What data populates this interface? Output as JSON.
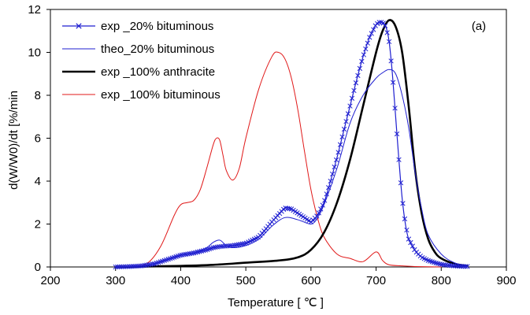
{
  "chart_data": {
    "type": "line",
    "annotation": "(a)",
    "xlabel": "Temperature [ ℃ ]",
    "ylabel": "d(W/W0)/dt [%/min",
    "xlim": [
      200,
      900
    ],
    "ylim": [
      0,
      12
    ],
    "x_ticks": [
      "200",
      "300",
      "400",
      "500",
      "600",
      "700",
      "800",
      "900"
    ],
    "y_ticks": [
      "0",
      "2",
      "4",
      "6",
      "8",
      "10",
      "12"
    ],
    "grid": false,
    "legend_position": "top-left",
    "series": [
      {
        "name": "exp _20% bituminous",
        "color": "#1f1fd0",
        "style": "line-with-x-markers",
        "x": [
          300,
          320,
          340,
          360,
          380,
          400,
          420,
          440,
          450,
          460,
          480,
          500,
          520,
          540,
          560,
          570,
          580,
          590,
          600,
          610,
          620,
          630,
          640,
          650,
          660,
          670,
          680,
          690,
          700,
          705,
          710,
          715,
          720,
          725,
          730,
          735,
          740,
          745,
          750,
          760,
          770,
          780,
          790,
          800,
          810,
          820,
          830,
          840
        ],
        "y": [
          0.0,
          0.02,
          0.05,
          0.15,
          0.35,
          0.55,
          0.65,
          0.8,
          0.9,
          0.95,
          1.0,
          1.1,
          1.4,
          2.1,
          2.75,
          2.7,
          2.5,
          2.3,
          2.1,
          2.4,
          3.0,
          4.0,
          5.1,
          6.3,
          7.5,
          8.7,
          9.8,
          10.7,
          11.3,
          11.4,
          11.4,
          11.2,
          10.5,
          9.0,
          7.0,
          5.0,
          3.2,
          2.0,
          1.3,
          0.75,
          0.45,
          0.3,
          0.2,
          0.12,
          0.08,
          0.05,
          0.03,
          0.02
        ]
      },
      {
        "name": "theo_20% bituminous",
        "color": "#1f1fd0",
        "style": "thin-line",
        "x": [
          300,
          340,
          360,
          380,
          400,
          420,
          440,
          450,
          460,
          470,
          480,
          500,
          520,
          540,
          560,
          580,
          600,
          610,
          620,
          640,
          660,
          680,
          700,
          710,
          720,
          730,
          740,
          750,
          760,
          770,
          780,
          800,
          820,
          840
        ],
        "y": [
          0.0,
          0.05,
          0.15,
          0.35,
          0.55,
          0.65,
          0.9,
          1.15,
          1.25,
          1.0,
          0.9,
          1.0,
          1.3,
          1.9,
          2.3,
          2.2,
          2.0,
          2.3,
          2.9,
          4.6,
          6.7,
          8.0,
          8.8,
          9.05,
          9.2,
          9.0,
          8.0,
          6.5,
          4.4,
          2.7,
          1.5,
          0.6,
          0.2,
          0.05
        ]
      },
      {
        "name": "exp _100% anthracite",
        "color": "#000000",
        "style": "thick-line",
        "x": [
          300,
          400,
          450,
          500,
          550,
          580,
          600,
          620,
          640,
          660,
          680,
          700,
          710,
          720,
          730,
          740,
          750,
          760,
          770,
          780,
          790,
          800,
          820,
          840
        ],
        "y": [
          0.0,
          0.05,
          0.1,
          0.2,
          0.3,
          0.45,
          0.8,
          1.6,
          3.0,
          5.0,
          7.5,
          10.0,
          11.0,
          11.5,
          11.2,
          10.0,
          7.5,
          4.5,
          2.5,
          1.3,
          0.7,
          0.4,
          0.15,
          0.05
        ]
      },
      {
        "name": "exp _100% bituminous",
        "color": "#e01818",
        "style": "thin-line",
        "x": [
          300,
          330,
          350,
          370,
          390,
          400,
          410,
          420,
          430,
          440,
          450,
          455,
          460,
          465,
          470,
          480,
          490,
          500,
          520,
          540,
          550,
          560,
          570,
          580,
          590,
          600,
          610,
          620,
          640,
          660,
          680,
          700,
          710,
          720,
          740,
          760,
          800
        ],
        "y": [
          0.0,
          0.05,
          0.2,
          1.0,
          2.4,
          2.9,
          3.0,
          3.1,
          3.6,
          4.6,
          5.7,
          6.0,
          5.9,
          5.2,
          4.5,
          4.05,
          4.6,
          6.0,
          8.3,
          9.8,
          10.0,
          9.7,
          8.8,
          7.3,
          5.4,
          3.6,
          2.3,
          1.4,
          0.6,
          0.4,
          0.25,
          0.7,
          0.3,
          0.1,
          0.05,
          0.02,
          0.0
        ]
      }
    ]
  }
}
